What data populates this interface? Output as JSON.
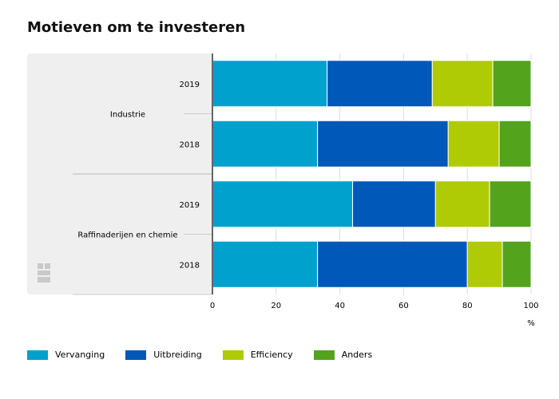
{
  "chart_data": {
    "type": "bar",
    "orientation": "horizontal",
    "stacked": true,
    "title": "Motieven om te investeren",
    "unit": "%",
    "xlim": [
      0,
      100
    ],
    "xticks": [
      0,
      20,
      40,
      60,
      80,
      100
    ],
    "grid": true,
    "legend_position": "bottom",
    "groups": [
      {
        "name": "Industrie",
        "categories": [
          "2019",
          "2018"
        ]
      },
      {
        "name": "Raffinaderijen en chemie",
        "categories": [
          "2019",
          "2018"
        ]
      }
    ],
    "categories": [
      "Industrie 2019",
      "Industrie 2018",
      "Raffinaderijen en chemie 2019",
      "Raffinaderijen en chemie 2018"
    ],
    "series": [
      {
        "name": "Vervanging",
        "color": "#00a1cd",
        "values": [
          36,
          33,
          44,
          33
        ]
      },
      {
        "name": "Uitbreiding",
        "color": "#0058b8",
        "values": [
          33,
          41,
          26,
          47
        ]
      },
      {
        "name": "Efficiency",
        "color": "#afcb05",
        "values": [
          19,
          16,
          17,
          11
        ]
      },
      {
        "name": "Anders",
        "color": "#53a31d",
        "values": [
          12,
          10,
          13,
          9
        ]
      }
    ]
  },
  "logo": {
    "icon": "cbs-logo-icon",
    "color": "#c9c9c9"
  },
  "colors": {
    "panel": "#efefef",
    "axis": "#666666",
    "grid": "#dddddd"
  }
}
